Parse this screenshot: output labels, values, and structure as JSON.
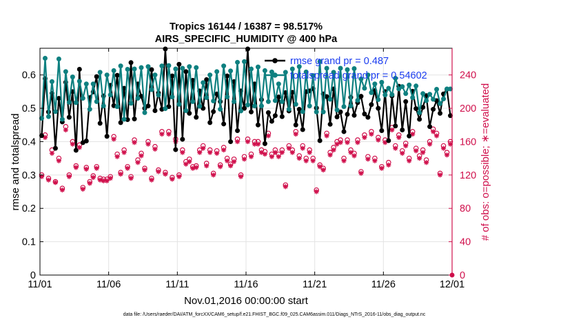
{
  "chart_data": {
    "type": "line",
    "title": "Tropics 16144 / 16387 = 98.517%",
    "subtitle": "AIRS_SPECIFIC_HUMIDITY @ 400 hPa",
    "xlabel": "Nov.01,2016 00:00:00 start",
    "ylabel": "rmse and totalspread",
    "y2label": "# of obs: o=possible; ∗=evaluated",
    "footnote": "data file: /Users/raeder/DAI/ATM_forcXX/CAM6_setup/f.e21.FHIST_BGC.f09_025.CAM6assim.011/Diags_NTrS_2016-11/obs_diag_output.nc",
    "x_ticks": [
      "11/01",
      "11/06",
      "11/11",
      "11/16",
      "11/21",
      "11/26",
      "12/01"
    ],
    "x_tick_days": [
      0,
      5,
      10,
      15,
      20,
      25,
      30
    ],
    "xlim": [
      0,
      30
    ],
    "y_ticks": [
      "0",
      "0.1",
      "0.2",
      "0.3",
      "0.4",
      "0.5",
      "0.6"
    ],
    "y_tick_values": [
      0,
      0.1,
      0.2,
      0.3,
      0.4,
      0.5,
      0.6
    ],
    "ylim": [
      0,
      0.68
    ],
    "y2_ticks": [
      "0",
      "40",
      "80",
      "120",
      "160",
      "200",
      "240"
    ],
    "y2_tick_values": [
      0,
      40,
      80,
      120,
      160,
      200,
      240
    ],
    "y2lim": [
      0,
      272
    ],
    "legend": [
      {
        "name": "rmse grand pr = 0.487",
        "color": "#000000"
      },
      {
        "name": "totalspread grand pr = 0.54602",
        "color": "#0e8080"
      }
    ],
    "x": [
      0.125,
      0.375,
      0.625,
      0.875,
      1.125,
      1.375,
      1.625,
      1.875,
      2.125,
      2.375,
      2.625,
      2.875,
      3.125,
      3.375,
      3.625,
      3.875,
      4.125,
      4.375,
      4.625,
      4.875,
      5.125,
      5.375,
      5.625,
      5.875,
      6.125,
      6.375,
      6.625,
      6.875,
      7.125,
      7.375,
      7.625,
      7.875,
      8.125,
      8.375,
      8.625,
      8.875,
      9.125,
      9.375,
      9.625,
      9.875,
      10.125,
      10.375,
      10.625,
      10.875,
      11.125,
      11.375,
      11.625,
      11.875,
      12.125,
      12.375,
      12.625,
      12.875,
      13.125,
      13.375,
      13.625,
      13.875,
      14.125,
      14.375,
      14.625,
      14.875,
      15.125,
      15.375,
      15.625,
      15.875,
      16.125,
      16.375,
      16.625,
      16.875,
      17.125,
      17.375,
      17.625,
      17.875,
      18.125,
      18.375,
      18.625,
      18.875,
      19.125,
      19.375,
      19.625,
      19.875,
      20.125,
      20.375,
      20.625,
      20.875,
      21.125,
      21.375,
      21.625,
      21.875,
      22.125,
      22.375,
      22.625,
      22.875,
      23.125,
      23.375,
      23.625,
      23.875,
      24.125,
      24.375,
      24.625,
      24.875,
      25.125,
      25.375,
      25.625,
      25.875,
      26.125,
      26.375,
      26.625,
      26.875,
      27.125,
      27.375,
      27.625,
      27.875,
      28.125,
      28.375,
      28.625,
      28.875,
      29.125,
      29.375,
      29.625,
      29.875
    ],
    "series": [
      {
        "name": "rmse",
        "color": "#000000",
        "values": [
          0.418,
          0.589,
          0.489,
          0.545,
          0.38,
          0.53,
          0.459,
          0.578,
          0.473,
          0.55,
          0.374,
          0.617,
          0.397,
          0.402,
          0.532,
          0.549,
          0.595,
          0.455,
          0.537,
          0.416,
          0.569,
          0.508,
          0.599,
          0.457,
          0.56,
          0.466,
          0.637,
          0.468,
          0.573,
          0.536,
          0.5,
          0.507,
          0.616,
          0.493,
          0.546,
          0.497,
          0.678,
          0.505,
          0.597,
          0.376,
          0.632,
          0.407,
          0.61,
          0.485,
          0.584,
          0.473,
          0.552,
          0.5,
          0.586,
          0.457,
          0.49,
          0.543,
          0.52,
          0.453,
          0.597,
          0.4,
          0.58,
          0.433,
          0.552,
          0.5,
          0.678,
          0.489,
          0.573,
          0.45,
          0.526,
          0.394,
          0.487,
          0.461,
          0.478,
          0.534,
          0.475,
          0.547,
          0.492,
          0.548,
          0.45,
          0.497,
          0.436,
          0.55,
          0.552,
          0.559,
          0.501,
          0.403,
          0.543,
          0.535,
          0.452,
          0.558,
          0.474,
          0.489,
          0.43,
          0.482,
          0.533,
          0.479,
          0.517,
          0.536,
          0.483,
          0.473,
          0.511,
          0.553,
          0.5,
          0.433,
          0.55,
          0.403,
          0.537,
          0.447,
          0.566,
          0.435,
          0.52,
          0.417,
          0.551,
          0.499,
          0.467,
          0.503,
          0.538,
          0.445,
          0.497,
          0.523,
          0.485,
          0.543,
          0.557,
          0.478
        ]
      },
      {
        "name": "totalspread",
        "color": "#0e8080",
        "values": [
          0.47,
          0.65,
          0.475,
          0.58,
          0.49,
          0.648,
          0.467,
          0.61,
          0.518,
          0.594,
          0.517,
          0.581,
          0.53,
          0.573,
          0.497,
          0.573,
          0.52,
          0.608,
          0.507,
          0.6,
          0.54,
          0.613,
          0.505,
          0.627,
          0.467,
          0.617,
          0.515,
          0.618,
          0.53,
          0.622,
          0.487,
          0.625,
          0.556,
          0.6,
          0.54,
          0.627,
          0.499,
          0.628,
          0.534,
          0.618,
          0.512,
          0.62,
          0.493,
          0.625,
          0.52,
          0.622,
          0.506,
          0.577,
          0.532,
          0.6,
          0.522,
          0.61,
          0.497,
          0.627,
          0.534,
          0.612,
          0.52,
          0.638,
          0.492,
          0.64,
          0.51,
          0.618,
          0.507,
          0.624,
          0.507,
          0.613,
          0.52,
          0.609,
          0.523,
          0.573,
          0.52,
          0.608,
          0.497,
          0.618,
          0.512,
          0.625,
          0.49,
          0.609,
          0.507,
          0.598,
          0.489,
          0.64,
          0.489,
          0.62,
          0.527,
          0.608,
          0.495,
          0.62,
          0.505,
          0.616,
          0.507,
          0.619,
          0.524,
          0.588,
          0.56,
          0.6,
          0.547,
          0.573,
          0.526,
          0.578,
          0.54,
          0.56,
          0.541,
          0.59,
          0.558,
          0.565,
          0.544,
          0.57,
          0.532,
          0.567,
          0.487,
          0.544,
          0.523,
          0.542,
          0.527,
          0.557,
          0.514,
          0.528,
          0.558,
          0.558
        ]
      },
      {
        "name": "obs possible",
        "color": "#d0104c",
        "axis": "right",
        "marker": "o",
        "values": [
          120,
          168,
          116,
          150,
          112,
          140,
          104,
          178,
          120,
          160,
          131,
          156,
          105,
          129,
          112,
          119,
          130,
          116,
          115,
          115,
          118,
          166,
          145,
          123,
          150,
          130,
          118,
          162,
          138,
          146,
          128,
          160,
          116,
          154,
          126,
          172,
          123,
          172,
          117,
          163,
          120,
          150,
          136,
          139,
          130,
          131,
          150,
          155,
          134,
          150,
          122,
          149,
          132,
          153,
          140,
          133,
          139,
          163,
          120,
          142,
          163,
          145,
          160,
          160,
          150,
          148,
          170,
          145,
          150,
          145,
          150,
          108,
          155,
          150,
          172,
          143,
          155,
          140,
          150,
          140,
          102,
          132,
          128,
          170,
          147,
          153,
          160,
          162,
          140,
          162,
          150,
          146,
          162,
          124,
          168,
          142,
          172,
          140,
          165,
          130,
          162,
          135,
          177,
          155,
          168,
          149,
          158,
          140,
          172,
          152,
          143,
          150,
          138,
          160,
          175,
          170,
          122,
          155,
          147,
          160
        ]
      },
      {
        "name": "obs evaluated",
        "color": "#d0104c",
        "axis": "right",
        "marker": "*",
        "values": [
          118,
          165,
          114,
          146,
          111,
          137,
          102,
          174,
          118,
          157,
          129,
          153,
          103,
          127,
          110,
          117,
          128,
          114,
          113,
          113,
          116,
          163,
          142,
          121,
          147,
          128,
          116,
          159,
          135,
          143,
          126,
          157,
          114,
          151,
          124,
          169,
          121,
          169,
          115,
          160,
          118,
          147,
          133,
          136,
          128,
          129,
          147,
          152,
          131,
          147,
          120,
          146,
          130,
          150,
          137,
          131,
          136,
          160,
          118,
          139,
          160,
          142,
          157,
          157,
          147,
          145,
          167,
          142,
          147,
          142,
          147,
          106,
          152,
          147,
          169,
          140,
          152,
          137,
          147,
          137,
          100,
          130,
          126,
          167,
          144,
          150,
          157,
          159,
          137,
          159,
          147,
          143,
          159,
          122,
          165,
          139,
          169,
          137,
          162,
          128,
          159,
          132,
          174,
          152,
          165,
          146,
          155,
          137,
          169,
          149,
          140,
          147,
          135,
          157,
          172,
          167,
          120,
          152,
          144,
          157
        ]
      }
    ]
  }
}
